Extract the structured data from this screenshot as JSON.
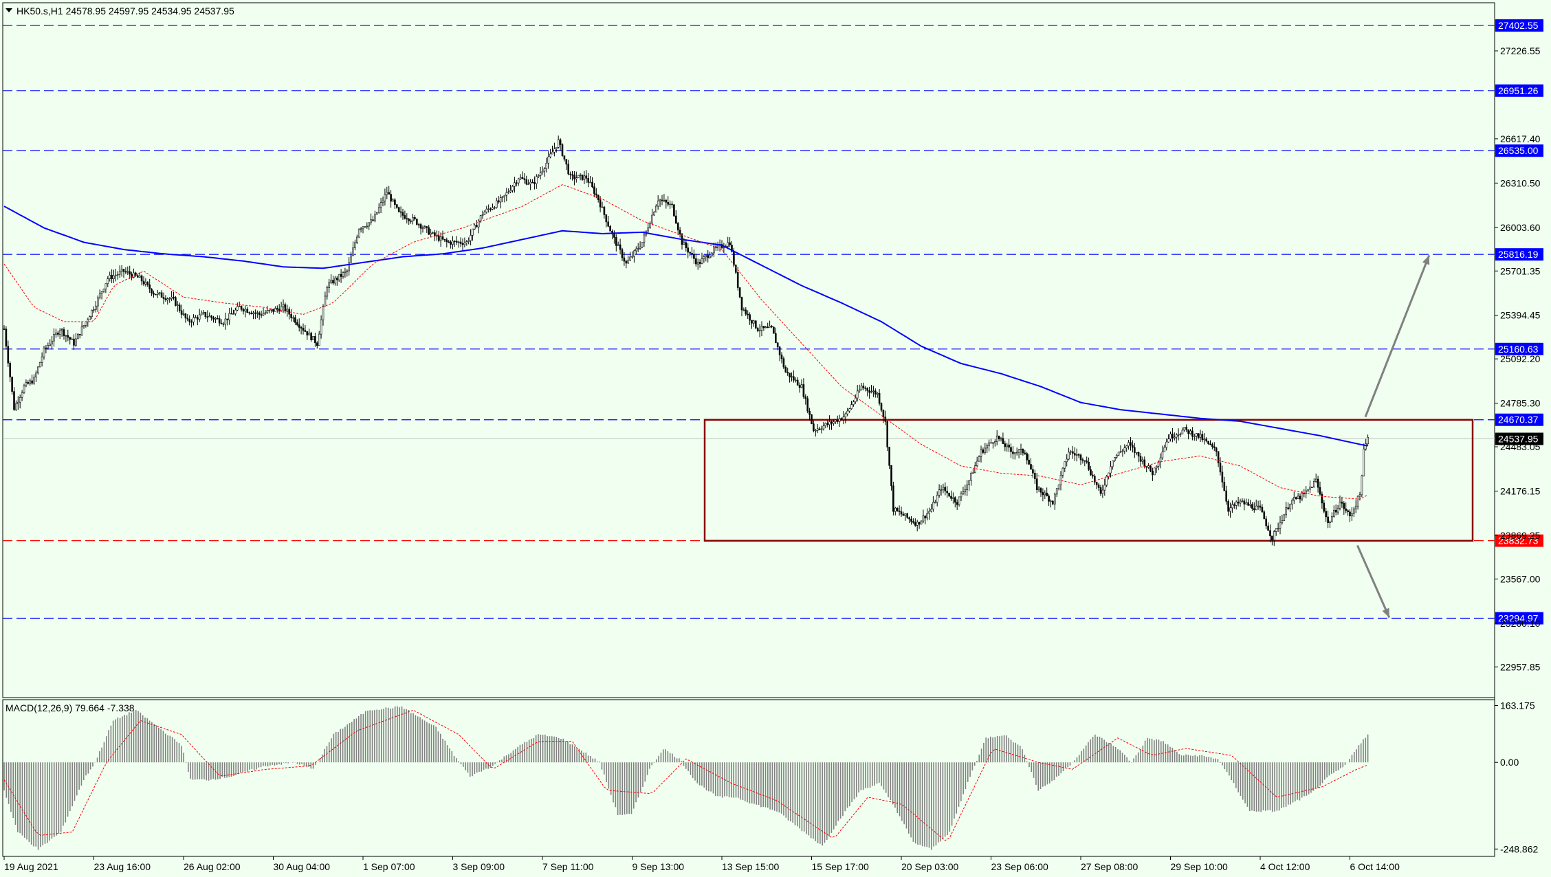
{
  "window": {
    "symbol_header": "HK50.s,H1  24578.95 24597.95 24534.95 24537.95",
    "macd_header": "MACD(12,26,9) 79.664 -7.338"
  },
  "colors": {
    "background": "#f0fff0",
    "candles": "#000000",
    "ma_slow": "#0000ff",
    "ma_fast": "#ff0000",
    "range_box": "#8b0000",
    "level_blue": "#0000ff",
    "level_red": "#ff0000",
    "arrow": "#808080",
    "macd_hist": "#808080",
    "macd_signal": "#ff0000"
  },
  "chart_data": [
    {
      "type": "candlestick",
      "title": "HK50.s,H1  24578.95 24597.95 24534.95 24537.95",
      "ohlc_last": {
        "open": 24578.95,
        "high": 24597.95,
        "low": 24534.95,
        "close": 24537.95
      },
      "ylim": [
        22745,
        27560
      ],
      "y_ticks": [
        "27226.55",
        "26617.40",
        "26310.50",
        "26003.60",
        "25701.35",
        "25394.45",
        "25092.20",
        "24785.30",
        "24483.05",
        "24176.15",
        "23869.25",
        "23567.00",
        "23260.10",
        "22957.85"
      ],
      "x_ticks": [
        "19 Aug 2021",
        "23 Aug 16:00",
        "26 Aug 02:00",
        "30 Aug 04:00",
        "1 Sep 07:00",
        "3 Sep 09:00",
        "7 Sep 11:00",
        "9 Sep 13:00",
        "13 Sep 15:00",
        "15 Sep 17:00",
        "20 Sep 03:00",
        "23 Sep 06:00",
        "27 Sep 08:00",
        "29 Sep 10:00",
        "4 Oct 12:00",
        "6 Oct 14:00"
      ],
      "x_tick_index": [
        0,
        45,
        90,
        135,
        180,
        225,
        270,
        315,
        360,
        405,
        450,
        495,
        540,
        585,
        630,
        675
      ],
      "bars": 680,
      "price_path": [
        [
          0,
          25300
        ],
        [
          5,
          24750
        ],
        [
          10,
          24900
        ],
        [
          15,
          24950
        ],
        [
          20,
          25150
        ],
        [
          28,
          25300
        ],
        [
          35,
          25200
        ],
        [
          45,
          25450
        ],
        [
          52,
          25650
        ],
        [
          60,
          25700
        ],
        [
          68,
          25650
        ],
        [
          75,
          25550
        ],
        [
          85,
          25500
        ],
        [
          92,
          25350
        ],
        [
          100,
          25400
        ],
        [
          110,
          25350
        ],
        [
          118,
          25450
        ],
        [
          128,
          25400
        ],
        [
          140,
          25450
        ],
        [
          150,
          25300
        ],
        [
          157,
          25200
        ],
        [
          162,
          25600
        ],
        [
          172,
          25700
        ],
        [
          178,
          26000
        ],
        [
          185,
          26050
        ],
        [
          192,
          26250
        ],
        [
          198,
          26100
        ],
        [
          206,
          26050
        ],
        [
          215,
          25950
        ],
        [
          222,
          25900
        ],
        [
          232,
          25900
        ],
        [
          240,
          26100
        ],
        [
          250,
          26200
        ],
        [
          258,
          26350
        ],
        [
          265,
          26300
        ],
        [
          272,
          26450
        ],
        [
          278,
          26600
        ],
        [
          284,
          26350
        ],
        [
          292,
          26350
        ],
        [
          298,
          26200
        ],
        [
          305,
          25950
        ],
        [
          312,
          25750
        ],
        [
          320,
          25900
        ],
        [
          328,
          26200
        ],
        [
          335,
          26150
        ],
        [
          340,
          25900
        ],
        [
          348,
          25750
        ],
        [
          356,
          25850
        ],
        [
          364,
          25900
        ],
        [
          370,
          25450
        ],
        [
          378,
          25300
        ],
        [
          385,
          25300
        ],
        [
          392,
          25000
        ],
        [
          400,
          24900
        ],
        [
          406,
          24600
        ],
        [
          415,
          24650
        ],
        [
          422,
          24700
        ],
        [
          430,
          24900
        ],
        [
          438,
          24850
        ],
        [
          442,
          24650
        ],
        [
          446,
          24050
        ],
        [
          452,
          24000
        ],
        [
          458,
          23950
        ],
        [
          465,
          24050
        ],
        [
          470,
          24200
        ],
        [
          478,
          24100
        ],
        [
          484,
          24250
        ],
        [
          490,
          24450
        ],
        [
          498,
          24550
        ],
        [
          505,
          24450
        ],
        [
          512,
          24450
        ],
        [
          518,
          24200
        ],
        [
          526,
          24100
        ],
        [
          534,
          24450
        ],
        [
          542,
          24400
        ],
        [
          550,
          24150
        ],
        [
          556,
          24400
        ],
        [
          564,
          24500
        ],
        [
          570,
          24400
        ],
        [
          576,
          24300
        ],
        [
          584,
          24550
        ],
        [
          592,
          24600
        ],
        [
          600,
          24550
        ],
        [
          608,
          24450
        ],
        [
          614,
          24050
        ],
        [
          620,
          24100
        ],
        [
          630,
          24050
        ],
        [
          636,
          23850
        ],
        [
          645,
          24100
        ],
        [
          652,
          24150
        ],
        [
          658,
          24250
        ],
        [
          664,
          23950
        ],
        [
          670,
          24100
        ],
        [
          675,
          24000
        ],
        [
          680,
          24150
        ],
        [
          682,
          24450
        ],
        [
          684,
          24540
        ]
      ],
      "ma_slow_path": [
        [
          0,
          26150
        ],
        [
          20,
          26000
        ],
        [
          40,
          25900
        ],
        [
          60,
          25850
        ],
        [
          80,
          25820
        ],
        [
          100,
          25800
        ],
        [
          120,
          25770
        ],
        [
          140,
          25730
        ],
        [
          160,
          25720
        ],
        [
          180,
          25760
        ],
        [
          200,
          25800
        ],
        [
          220,
          25820
        ],
        [
          240,
          25860
        ],
        [
          260,
          25920
        ],
        [
          280,
          25980
        ],
        [
          300,
          25960
        ],
        [
          320,
          25970
        ],
        [
          340,
          25920
        ],
        [
          360,
          25880
        ],
        [
          380,
          25740
        ],
        [
          400,
          25600
        ],
        [
          420,
          25480
        ],
        [
          440,
          25350
        ],
        [
          460,
          25180
        ],
        [
          480,
          25060
        ],
        [
          500,
          24990
        ],
        [
          520,
          24900
        ],
        [
          540,
          24790
        ],
        [
          560,
          24740
        ],
        [
          580,
          24710
        ],
        [
          600,
          24680
        ],
        [
          620,
          24660
        ],
        [
          640,
          24610
        ],
        [
          660,
          24560
        ],
        [
          680,
          24500
        ],
        [
          684,
          24490
        ]
      ],
      "ma_fast_path": [
        [
          0,
          25750
        ],
        [
          15,
          25450
        ],
        [
          30,
          25350
        ],
        [
          45,
          25350
        ],
        [
          55,
          25600
        ],
        [
          70,
          25700
        ],
        [
          90,
          25520
        ],
        [
          110,
          25480
        ],
        [
          130,
          25450
        ],
        [
          150,
          25400
        ],
        [
          165,
          25480
        ],
        [
          185,
          25750
        ],
        [
          205,
          25900
        ],
        [
          230,
          26000
        ],
        [
          260,
          26150
        ],
        [
          280,
          26300
        ],
        [
          300,
          26200
        ],
        [
          320,
          26050
        ],
        [
          340,
          25950
        ],
        [
          360,
          25850
        ],
        [
          380,
          25500
        ],
        [
          400,
          25200
        ],
        [
          420,
          24900
        ],
        [
          440,
          24700
        ],
        [
          460,
          24500
        ],
        [
          480,
          24350
        ],
        [
          500,
          24300
        ],
        [
          520,
          24280
        ],
        [
          540,
          24220
        ],
        [
          560,
          24300
        ],
        [
          580,
          24380
        ],
        [
          600,
          24420
        ],
        [
          620,
          24350
        ],
        [
          640,
          24200
        ],
        [
          660,
          24140
        ],
        [
          680,
          24120
        ],
        [
          684,
          24150
        ]
      ],
      "levels": [
        {
          "label": "27402.55",
          "value": 27402.55,
          "color": "blue",
          "dashed": true
        },
        {
          "label": "26951.26",
          "value": 26951.26,
          "color": "blue",
          "dashed": true
        },
        {
          "label": "26535.00",
          "value": 26535.0,
          "color": "blue",
          "dashed": true
        },
        {
          "label": "25816.19",
          "value": 25816.19,
          "color": "blue",
          "dashed": true
        },
        {
          "label": "25160.63",
          "value": 25160.63,
          "color": "blue",
          "dashed": true
        },
        {
          "label": "24670.37",
          "value": 24670.37,
          "color": "blue",
          "dashed": true
        },
        {
          "label": "23832.73",
          "value": 23832.73,
          "color": "red",
          "dashed": true
        },
        {
          "label": "23294.97",
          "value": 23294.97,
          "color": "blue",
          "dashed": true
        }
      ],
      "current_price_label": "24537.95",
      "current_price": 24537.95,
      "range_box": {
        "bar_from": 310,
        "bar_to": 690,
        "price_top": 24670,
        "price_bottom": 23832
      },
      "arrows": [
        {
          "from_bar": 600,
          "from_price": 24690,
          "to_bar": 632,
          "to_price": 25810
        },
        {
          "from_bar": 596,
          "from_price": 23800,
          "to_bar": 612,
          "to_price": 23300
        }
      ]
    },
    {
      "type": "bar",
      "title": "MACD(12,26,9) 79.664 -7.338",
      "values_last": {
        "macd": 79.664,
        "signal": -7.338
      },
      "ylim": [
        -270,
        180
      ],
      "y_ticks": [
        "163.175",
        "0.00",
        "-248.862"
      ],
      "histogram_path": [
        [
          0,
          -80
        ],
        [
          6,
          -200
        ],
        [
          15,
          -250
        ],
        [
          25,
          -200
        ],
        [
          35,
          -50
        ],
        [
          40,
          0
        ],
        [
          48,
          120
        ],
        [
          58,
          150
        ],
        [
          68,
          100
        ],
        [
          78,
          50
        ],
        [
          82,
          -50
        ],
        [
          90,
          -50
        ],
        [
          100,
          -40
        ],
        [
          115,
          -10
        ],
        [
          128,
          0
        ],
        [
          136,
          -20
        ],
        [
          145,
          80
        ],
        [
          160,
          150
        ],
        [
          175,
          160
        ],
        [
          190,
          100
        ],
        [
          198,
          20
        ],
        [
          205,
          -40
        ],
        [
          215,
          -10
        ],
        [
          225,
          40
        ],
        [
          235,
          80
        ],
        [
          245,
          70
        ],
        [
          255,
          30
        ],
        [
          262,
          0
        ],
        [
          270,
          -150
        ],
        [
          276,
          -150
        ],
        [
          284,
          -20
        ],
        [
          290,
          40
        ],
        [
          297,
          10
        ],
        [
          305,
          -60
        ],
        [
          314,
          -100
        ],
        [
          322,
          -100
        ],
        [
          330,
          -120
        ],
        [
          340,
          -140
        ],
        [
          352,
          -200
        ],
        [
          360,
          -240
        ],
        [
          368,
          -160
        ],
        [
          377,
          -80
        ],
        [
          385,
          -60
        ],
        [
          392,
          -130
        ],
        [
          400,
          -230
        ],
        [
          408,
          -250
        ],
        [
          416,
          -200
        ],
        [
          425,
          -40
        ],
        [
          432,
          70
        ],
        [
          440,
          80
        ],
        [
          448,
          40
        ],
        [
          455,
          -80
        ],
        [
          462,
          -50
        ],
        [
          470,
          0
        ],
        [
          480,
          80
        ],
        [
          490,
          40
        ],
        [
          496,
          0
        ],
        [
          503,
          70
        ],
        [
          510,
          60
        ],
        [
          518,
          20
        ],
        [
          526,
          20
        ],
        [
          534,
          10
        ],
        [
          540,
          -50
        ],
        [
          548,
          -140
        ],
        [
          560,
          -140
        ],
        [
          575,
          -90
        ],
        [
          583,
          -40
        ],
        [
          590,
          -10
        ],
        [
          596,
          50
        ],
        [
          600,
          79.664
        ]
      ],
      "signal_path": [
        [
          0,
          -50
        ],
        [
          15,
          -210
        ],
        [
          30,
          -200
        ],
        [
          45,
          0
        ],
        [
          60,
          120
        ],
        [
          78,
          80
        ],
        [
          95,
          -40
        ],
        [
          115,
          -20
        ],
        [
          135,
          -10
        ],
        [
          155,
          90
        ],
        [
          180,
          150
        ],
        [
          200,
          80
        ],
        [
          215,
          -20
        ],
        [
          235,
          60
        ],
        [
          250,
          60
        ],
        [
          265,
          -80
        ],
        [
          285,
          -90
        ],
        [
          300,
          10
        ],
        [
          320,
          -60
        ],
        [
          340,
          -110
        ],
        [
          365,
          -220
        ],
        [
          380,
          -100
        ],
        [
          395,
          -120
        ],
        [
          415,
          -230
        ],
        [
          435,
          40
        ],
        [
          455,
          0
        ],
        [
          470,
          -20
        ],
        [
          490,
          70
        ],
        [
          505,
          20
        ],
        [
          520,
          40
        ],
        [
          540,
          20
        ],
        [
          560,
          -100
        ],
        [
          580,
          -70
        ],
        [
          595,
          -20
        ],
        [
          600,
          -7.338
        ]
      ]
    }
  ]
}
